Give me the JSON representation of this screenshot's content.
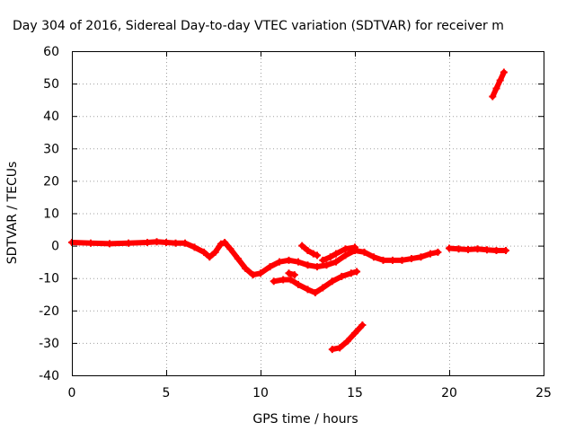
{
  "chart_data": {
    "type": "scatter",
    "title": "Day 304 of 2016, Sidereal Day-to-day VTEC variation (SDTVAR) for receiver m",
    "xlabel": "GPS time / hours",
    "ylabel": "SDTVAR / TECUs",
    "xlim": [
      0,
      25
    ],
    "ylim": [
      -40,
      60
    ],
    "xticks": [
      0,
      5,
      10,
      15,
      20,
      25
    ],
    "yticks": [
      -40,
      -30,
      -20,
      -10,
      0,
      10,
      20,
      30,
      40,
      50,
      60
    ],
    "grid": true,
    "legend": "none",
    "marker": "plus",
    "color": "#ff0000",
    "series": [
      {
        "values": [
          [
            0,
            1
          ],
          [
            1,
            0.8
          ],
          [
            2,
            0.6
          ],
          [
            3,
            0.8
          ],
          [
            4,
            1
          ],
          [
            4.5,
            1.2
          ],
          [
            5,
            1
          ],
          [
            5.5,
            0.8
          ],
          [
            6,
            0.8
          ],
          [
            6.5,
            -0.5
          ],
          [
            7,
            -2
          ],
          [
            7.3,
            -3.5
          ],
          [
            7.6,
            -2
          ],
          [
            7.9,
            0.5
          ],
          [
            8.1,
            1
          ],
          [
            8.4,
            -1
          ],
          [
            8.8,
            -4
          ],
          [
            9.2,
            -7
          ],
          [
            9.6,
            -9
          ],
          [
            10,
            -8.5
          ],
          [
            10.5,
            -6.5
          ],
          [
            11,
            -5
          ],
          [
            11.5,
            -4.5
          ],
          [
            12,
            -5
          ],
          [
            12.5,
            -6
          ],
          [
            13,
            -6.5
          ],
          [
            13.5,
            -6
          ],
          [
            14,
            -5
          ],
          [
            14.5,
            -3
          ],
          [
            15,
            -1.5
          ],
          [
            15.5,
            -2
          ],
          [
            16,
            -3.5
          ],
          [
            16.5,
            -4.5
          ],
          [
            17,
            -4.5
          ],
          [
            17.5,
            -4.5
          ],
          [
            18,
            -4
          ],
          [
            18.5,
            -3.5
          ],
          [
            19,
            -2.5
          ],
          [
            19.4,
            -2
          ]
        ]
      },
      {
        "values": [
          [
            12.2,
            0
          ],
          [
            12.5,
            -1.5
          ],
          [
            12.8,
            -2.5
          ],
          [
            13,
            -3
          ]
        ]
      },
      {
        "values": [
          [
            13.3,
            -4.5
          ],
          [
            13.7,
            -3.5
          ],
          [
            14,
            -2.5
          ],
          [
            14.5,
            -1
          ],
          [
            15,
            -0.5
          ]
        ]
      },
      {
        "values": [
          [
            10.7,
            -11
          ],
          [
            11.2,
            -10.5
          ],
          [
            11.6,
            -10.5
          ],
          [
            12,
            -12
          ],
          [
            12.5,
            -13.5
          ],
          [
            12.9,
            -14.5
          ],
          [
            13.3,
            -13
          ],
          [
            13.8,
            -11
          ],
          [
            14.3,
            -9.5
          ],
          [
            14.8,
            -8.5
          ],
          [
            15.1,
            -8
          ]
        ]
      },
      {
        "values": [
          [
            11.5,
            -8.5
          ],
          [
            11.8,
            -9
          ]
        ]
      },
      {
        "values": [
          [
            13.8,
            -32
          ],
          [
            14.2,
            -31.5
          ],
          [
            14.6,
            -29.5
          ],
          [
            15,
            -27
          ],
          [
            15.4,
            -24.5
          ]
        ]
      },
      {
        "values": [
          [
            20,
            -0.8
          ],
          [
            20.5,
            -1
          ],
          [
            21,
            -1.2
          ],
          [
            21.5,
            -1
          ],
          [
            22,
            -1.3
          ],
          [
            22.5,
            -1.5
          ],
          [
            23,
            -1.5
          ]
        ]
      },
      {
        "values": [
          [
            22.3,
            46
          ],
          [
            22.5,
            48.5
          ],
          [
            22.7,
            51
          ],
          [
            22.9,
            53.5
          ]
        ]
      }
    ]
  }
}
